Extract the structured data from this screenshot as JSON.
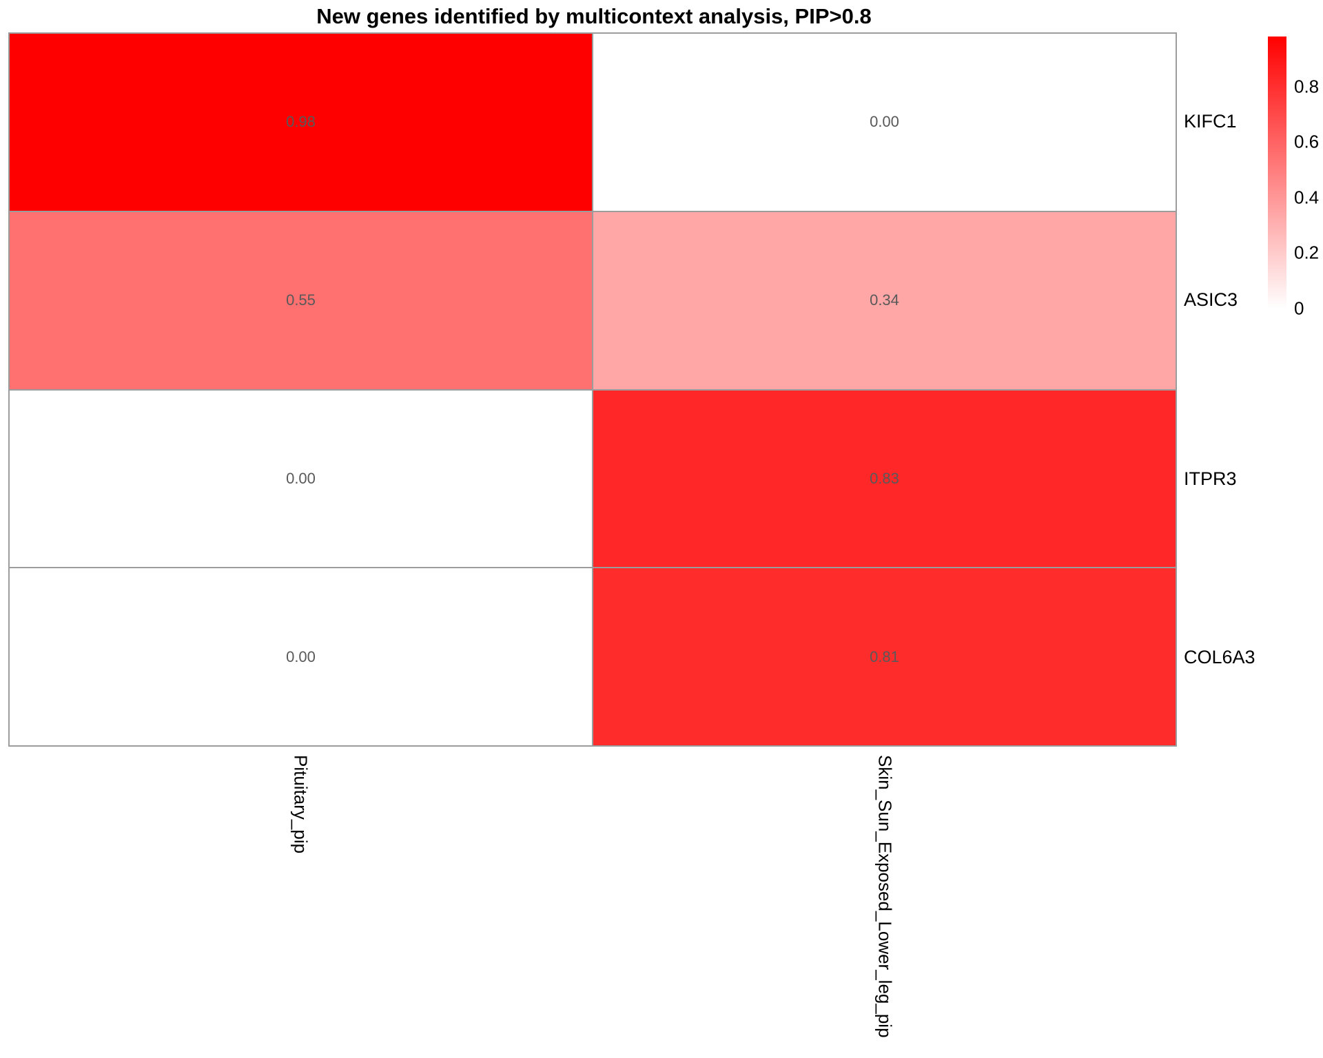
{
  "title": "New genes identified by multicontext analysis, PIP>0.8",
  "chart_data": {
    "type": "heatmap",
    "title": "New genes identified by multicontext analysis, PIP>0.8",
    "rows": [
      "KIFC1",
      "ASIC3",
      "ITPR3",
      "COL6A3"
    ],
    "columns": [
      "Pituitary_pip",
      "Skin_Sun_Exposed_Lower_leg_pip"
    ],
    "values": [
      [
        0.98,
        0.0
      ],
      [
        0.55,
        0.34
      ],
      [
        0.0,
        0.83
      ],
      [
        0.0,
        0.81
      ]
    ],
    "cell_label_decimals": 2,
    "color_scale": {
      "low_color": "#FFFFFF",
      "high_color": "#FF0000",
      "min": 0,
      "max": 0.98
    },
    "legend": {
      "ticks": [
        "0.8",
        "0.6",
        "0.4",
        "0.2",
        "0"
      ],
      "tick_values": [
        0.8,
        0.6,
        0.4,
        0.2,
        0
      ],
      "position": "right"
    },
    "grid_line_color": "#9C9C9C",
    "cell_text_color": "#595959",
    "legend_position": "top-right",
    "grid_on": true
  }
}
